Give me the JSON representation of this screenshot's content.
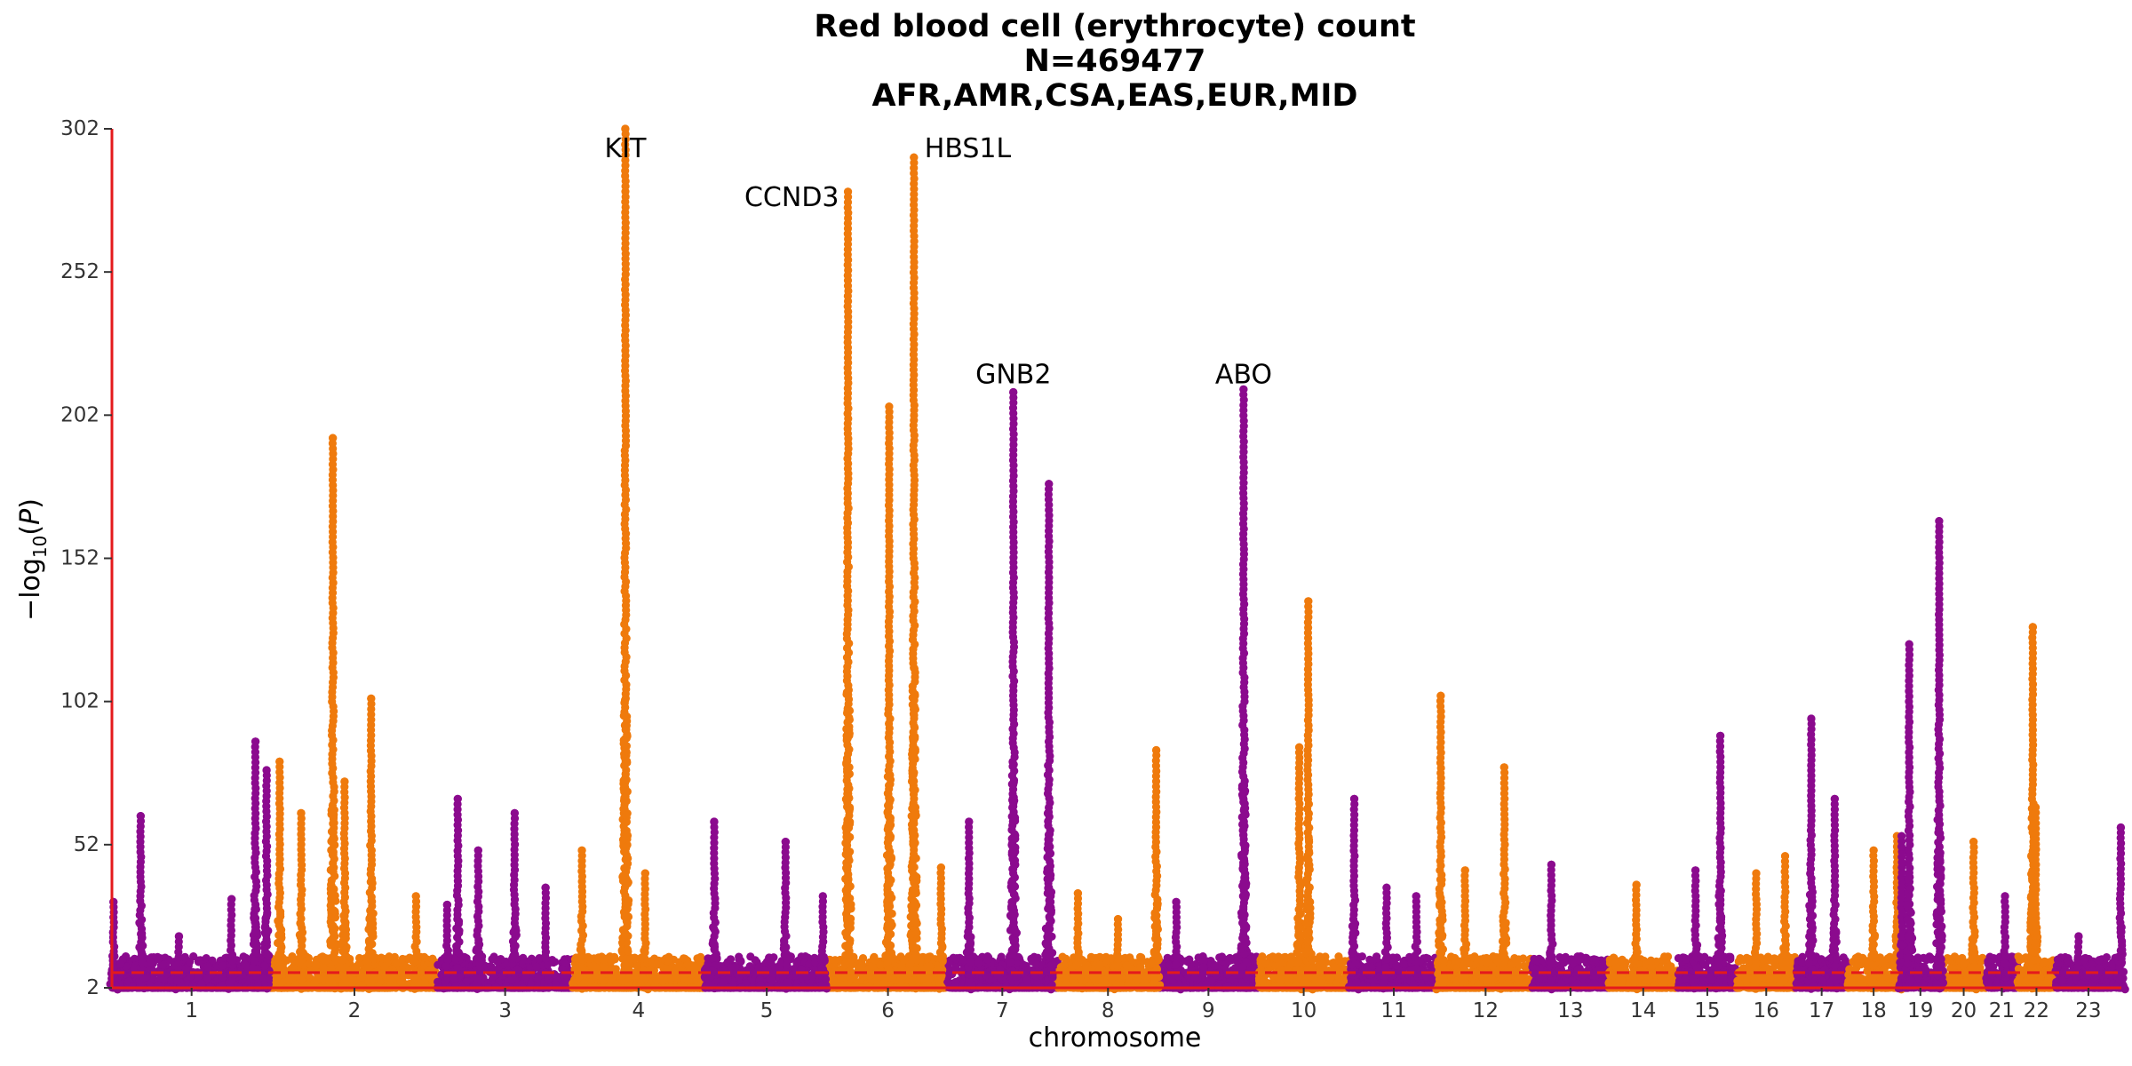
{
  "chart_data": {
    "type": "scatter",
    "subtype": "manhattan",
    "title_lines": [
      "Red blood cell (erythrocyte) count",
      "N=469477",
      "AFR,AMR,CSA,EAS,EUR,MID"
    ],
    "xlabel": "chromosome",
    "ylabel": "−log10(P)",
    "ylim": [
      2,
      302
    ],
    "yticks": [
      2,
      52,
      102,
      152,
      202,
      252,
      302
    ],
    "significance_line": 7.3,
    "colors": {
      "odd_chromosome": "#8B0A8E",
      "even_chromosome": "#EF7A0C",
      "axis": "#E41A1C",
      "threshold": "#E41A1C"
    },
    "chromosomes": [
      {
        "label": "1",
        "start": 0,
        "end": 230
      },
      {
        "label": "2",
        "start": 230,
        "end": 470
      },
      {
        "label": "3",
        "start": 470,
        "end": 665
      },
      {
        "label": "4",
        "start": 665,
        "end": 855
      },
      {
        "label": "5",
        "start": 855,
        "end": 1035
      },
      {
        "label": "6",
        "start": 1035,
        "end": 1205
      },
      {
        "label": "7",
        "start": 1205,
        "end": 1365
      },
      {
        "label": "8",
        "start": 1365,
        "end": 1510
      },
      {
        "label": "9",
        "start": 1510,
        "end": 1655
      },
      {
        "label": "10",
        "start": 1655,
        "end": 1785
      },
      {
        "label": "11",
        "start": 1785,
        "end": 1915
      },
      {
        "label": "12",
        "start": 1915,
        "end": 2050
      },
      {
        "label": "13",
        "start": 2050,
        "end": 2160
      },
      {
        "label": "14",
        "start": 2160,
        "end": 2260
      },
      {
        "label": "15",
        "start": 2260,
        "end": 2345
      },
      {
        "label": "16",
        "start": 2345,
        "end": 2430
      },
      {
        "label": "17",
        "start": 2430,
        "end": 2505
      },
      {
        "label": "18",
        "start": 2505,
        "end": 2580
      },
      {
        "label": "19",
        "start": 2580,
        "end": 2640
      },
      {
        "label": "20",
        "start": 2640,
        "end": 2705
      },
      {
        "label": "21",
        "start": 2705,
        "end": 2750
      },
      {
        "label": "22",
        "start": 2750,
        "end": 2805
      },
      {
        "label": "23",
        "start": 2805,
        "end": 2900
      }
    ],
    "peaks": [
      {
        "chr": "1",
        "pos": 0.01,
        "max": 32
      },
      {
        "chr": "1",
        "pos": 0.18,
        "max": 62
      },
      {
        "chr": "1",
        "pos": 0.42,
        "max": 20
      },
      {
        "chr": "1",
        "pos": 0.75,
        "max": 33
      },
      {
        "chr": "1",
        "pos": 0.9,
        "max": 88
      },
      {
        "chr": "1",
        "pos": 0.97,
        "max": 78
      },
      {
        "chr": "2",
        "pos": 0.05,
        "max": 81
      },
      {
        "chr": "2",
        "pos": 0.18,
        "max": 63
      },
      {
        "chr": "2",
        "pos": 0.37,
        "max": 194
      },
      {
        "chr": "2",
        "pos": 0.44,
        "max": 74
      },
      {
        "chr": "2",
        "pos": 0.6,
        "max": 103
      },
      {
        "chr": "2",
        "pos": 0.87,
        "max": 34
      },
      {
        "chr": "3",
        "pos": 0.07,
        "max": 31
      },
      {
        "chr": "3",
        "pos": 0.15,
        "max": 68
      },
      {
        "chr": "3",
        "pos": 0.3,
        "max": 50
      },
      {
        "chr": "3",
        "pos": 0.57,
        "max": 63
      },
      {
        "chr": "3",
        "pos": 0.8,
        "max": 37
      },
      {
        "chr": "4",
        "pos": 0.07,
        "max": 50
      },
      {
        "chr": "4",
        "pos": 0.4,
        "max": 302
      },
      {
        "chr": "4",
        "pos": 0.55,
        "max": 42
      },
      {
        "chr": "5",
        "pos": 0.08,
        "max": 60
      },
      {
        "chr": "5",
        "pos": 0.65,
        "max": 53
      },
      {
        "chr": "5",
        "pos": 0.95,
        "max": 34
      },
      {
        "chr": "6",
        "pos": 0.16,
        "max": 280
      },
      {
        "chr": "6",
        "pos": 0.51,
        "max": 205
      },
      {
        "chr": "6",
        "pos": 0.72,
        "max": 292
      },
      {
        "chr": "6",
        "pos": 0.95,
        "max": 44
      },
      {
        "chr": "7",
        "pos": 0.2,
        "max": 60
      },
      {
        "chr": "7",
        "pos": 0.6,
        "max": 210
      },
      {
        "chr": "7",
        "pos": 0.92,
        "max": 178
      },
      {
        "chr": "8",
        "pos": 0.2,
        "max": 35
      },
      {
        "chr": "8",
        "pos": 0.6,
        "max": 26
      },
      {
        "chr": "8",
        "pos": 0.98,
        "max": 85
      },
      {
        "chr": "9",
        "pos": 0.18,
        "max": 32
      },
      {
        "chr": "9",
        "pos": 0.85,
        "max": 211
      },
      {
        "chr": "10",
        "pos": 0.45,
        "max": 86
      },
      {
        "chr": "10",
        "pos": 0.55,
        "max": 137
      },
      {
        "chr": "11",
        "pos": 0.06,
        "max": 68
      },
      {
        "chr": "11",
        "pos": 0.42,
        "max": 37
      },
      {
        "chr": "11",
        "pos": 0.75,
        "max": 34
      },
      {
        "chr": "12",
        "pos": 0.02,
        "max": 104
      },
      {
        "chr": "12",
        "pos": 0.28,
        "max": 43
      },
      {
        "chr": "12",
        "pos": 0.7,
        "max": 79
      },
      {
        "chr": "13",
        "pos": 0.25,
        "max": 45
      },
      {
        "chr": "14",
        "pos": 0.4,
        "max": 38
      },
      {
        "chr": "15",
        "pos": 0.3,
        "max": 43
      },
      {
        "chr": "15",
        "pos": 0.72,
        "max": 90
      },
      {
        "chr": "16",
        "pos": 0.33,
        "max": 42
      },
      {
        "chr": "16",
        "pos": 0.82,
        "max": 48
      },
      {
        "chr": "17",
        "pos": 0.3,
        "max": 96
      },
      {
        "chr": "17",
        "pos": 0.75,
        "max": 68
      },
      {
        "chr": "18",
        "pos": 0.5,
        "max": 50
      },
      {
        "chr": "18",
        "pos": 0.95,
        "max": 55
      },
      {
        "chr": "19",
        "pos": 0.05,
        "max": 55
      },
      {
        "chr": "19",
        "pos": 0.23,
        "max": 122
      },
      {
        "chr": "19",
        "pos": 0.95,
        "max": 165
      },
      {
        "chr": "20",
        "pos": 0.72,
        "max": 53
      },
      {
        "chr": "21",
        "pos": 0.6,
        "max": 34
      },
      {
        "chr": "22",
        "pos": 0.4,
        "max": 128
      },
      {
        "chr": "22",
        "pos": 0.48,
        "max": 65
      },
      {
        "chr": "23",
        "pos": 0.35,
        "max": 20
      },
      {
        "chr": "23",
        "pos": 0.99,
        "max": 58
      }
    ],
    "annotations": [
      {
        "gene": "KIT",
        "chr": "4",
        "pos": 0.4,
        "y": 295,
        "anchor": "middle"
      },
      {
        "gene": "CCND3",
        "chr": "6",
        "pos": 0.16,
        "y": 278,
        "anchor": "end"
      },
      {
        "gene": "HBS1L",
        "chr": "6",
        "pos": 0.72,
        "y": 295,
        "anchor": "start"
      },
      {
        "gene": "GNB2",
        "chr": "7",
        "pos": 0.6,
        "y": 216,
        "anchor": "middle"
      },
      {
        "gene": "ABO",
        "chr": "9",
        "pos": 0.85,
        "y": 216,
        "anchor": "middle"
      }
    ]
  }
}
